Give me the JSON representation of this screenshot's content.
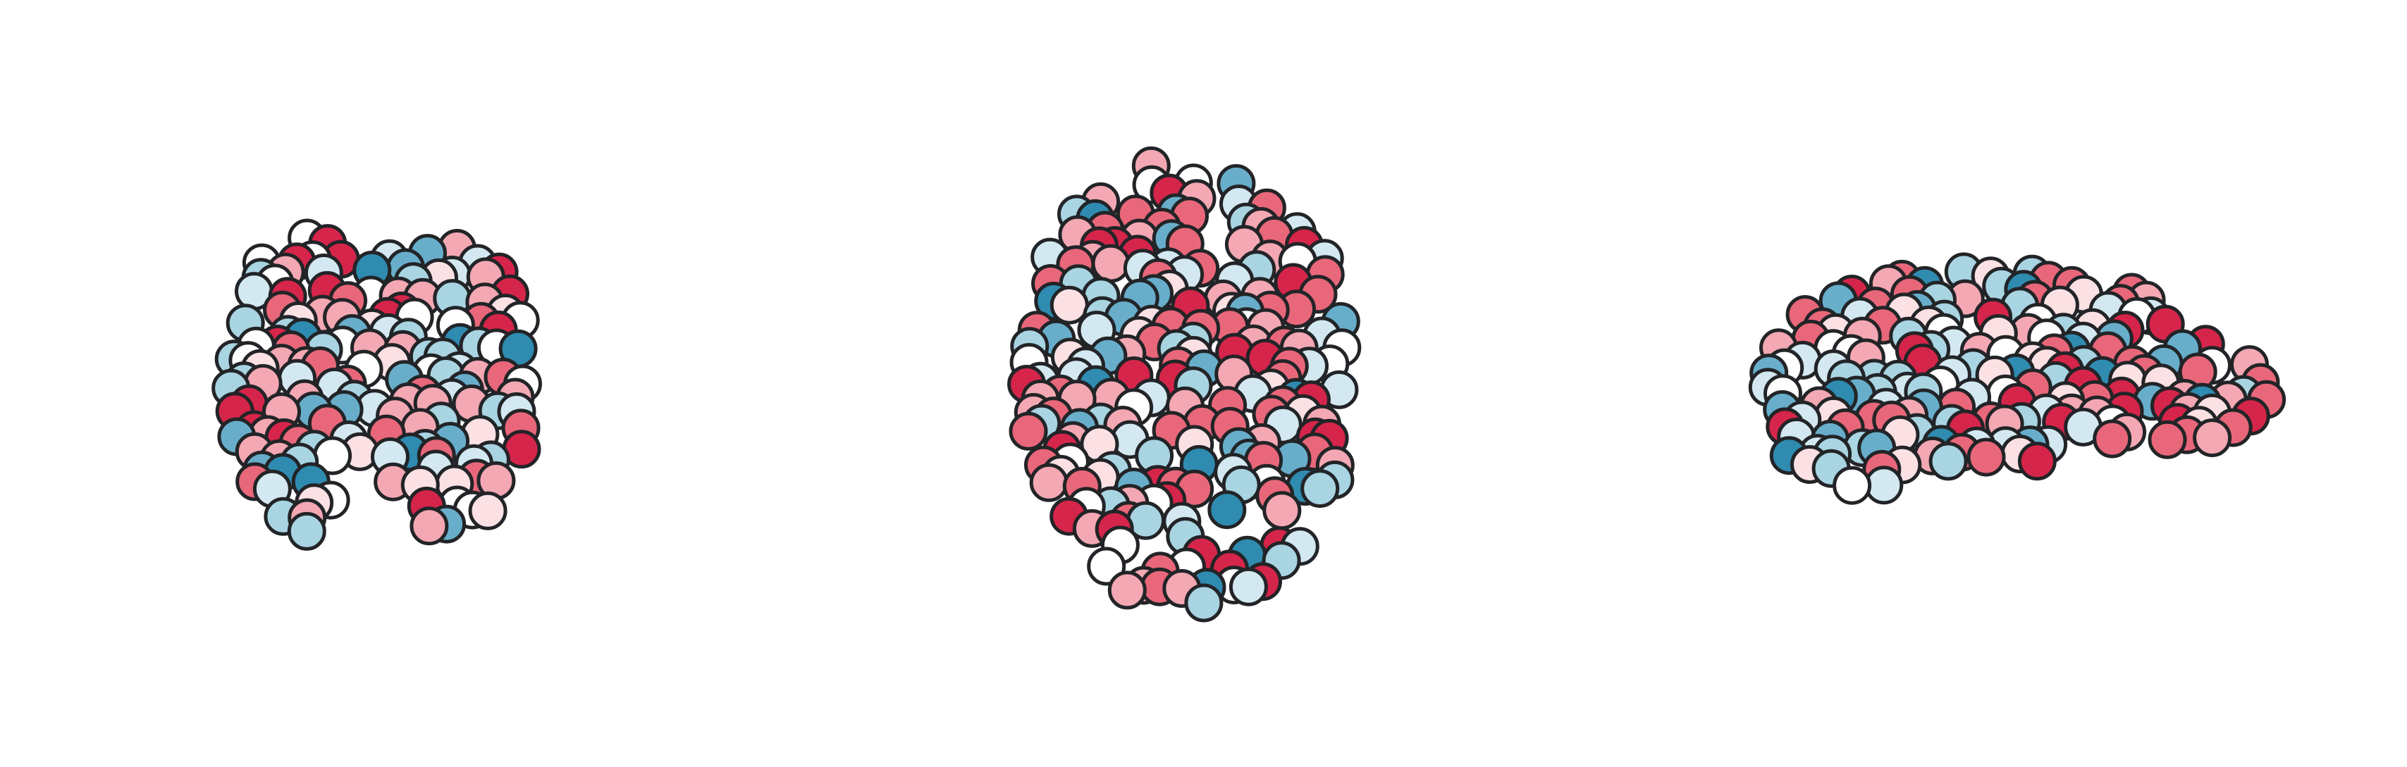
{
  "palette": {
    "deep_red": "#d6254a",
    "red": "#e9677a",
    "light_red": "#f3a8b3",
    "pale_pink": "#fbe1e4",
    "white": "#ffffff",
    "pale_blue": "#d3e8f0",
    "light_blue": "#a9d4e2",
    "blue": "#68aecb",
    "deep_blue": "#2f8bb0",
    "outline": "#222427",
    "background": "#ffffff"
  },
  "views": [
    {
      "key": "coronal",
      "name": "coronal-view",
      "node_count": 150
    },
    {
      "key": "axial",
      "name": "axial-view",
      "node_count": 200
    },
    {
      "key": "sagittal",
      "name": "sagittal-view",
      "node_count": 175
    }
  ]
}
